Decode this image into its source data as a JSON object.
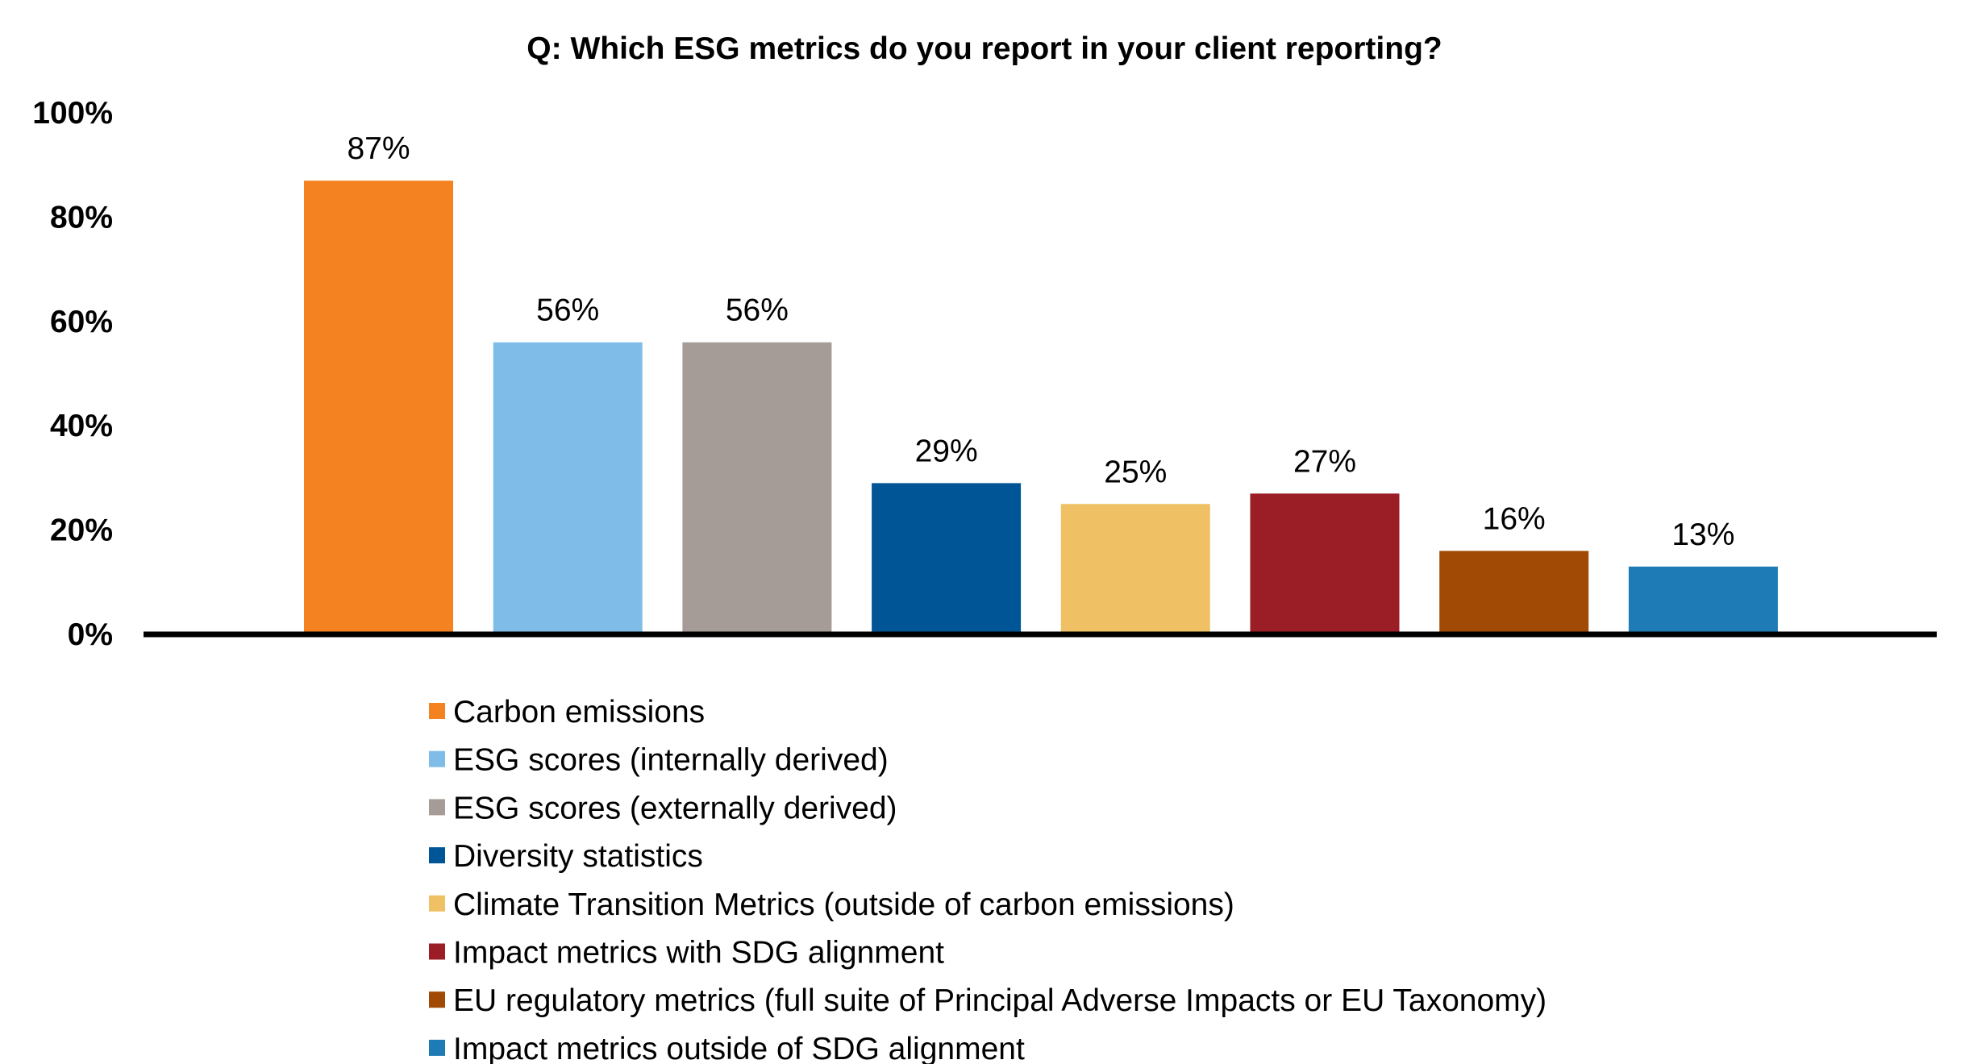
{
  "chart_data": {
    "type": "bar",
    "title": "Q: Which ESG metrics do you report in your client reporting?",
    "xlabel": "",
    "ylabel": "",
    "ylim": [
      0,
      100
    ],
    "yticks": [
      0,
      20,
      40,
      60,
      80,
      100
    ],
    "ytick_labels": [
      "0%",
      "20%",
      "40%",
      "60%",
      "80%",
      "100%"
    ],
    "grid": false,
    "legend_position": "bottom",
    "categories": [
      "Carbon emissions",
      "ESG scores (internally derived)",
      "ESG scores (externally derived)",
      "Diversity statistics",
      "Climate Transition Metrics (outside of carbon emissions)",
      "Impact metrics with SDG alignment",
      "EU regulatory metrics (full suite of Principal Adverse Impacts or EU Taxonomy)",
      "Impact metrics outside of SDG alignment"
    ],
    "values": [
      87,
      56,
      56,
      29,
      25,
      27,
      16,
      13
    ],
    "data_labels": [
      "87%",
      "56%",
      "56%",
      "29%",
      "25%",
      "27%",
      "16%",
      "13%"
    ],
    "colors": [
      "#F58220",
      "#7FBDE8",
      "#A59C97",
      "#005596",
      "#EFC164",
      "#9B1E26",
      "#A04A05",
      "#1F7BB6"
    ]
  }
}
